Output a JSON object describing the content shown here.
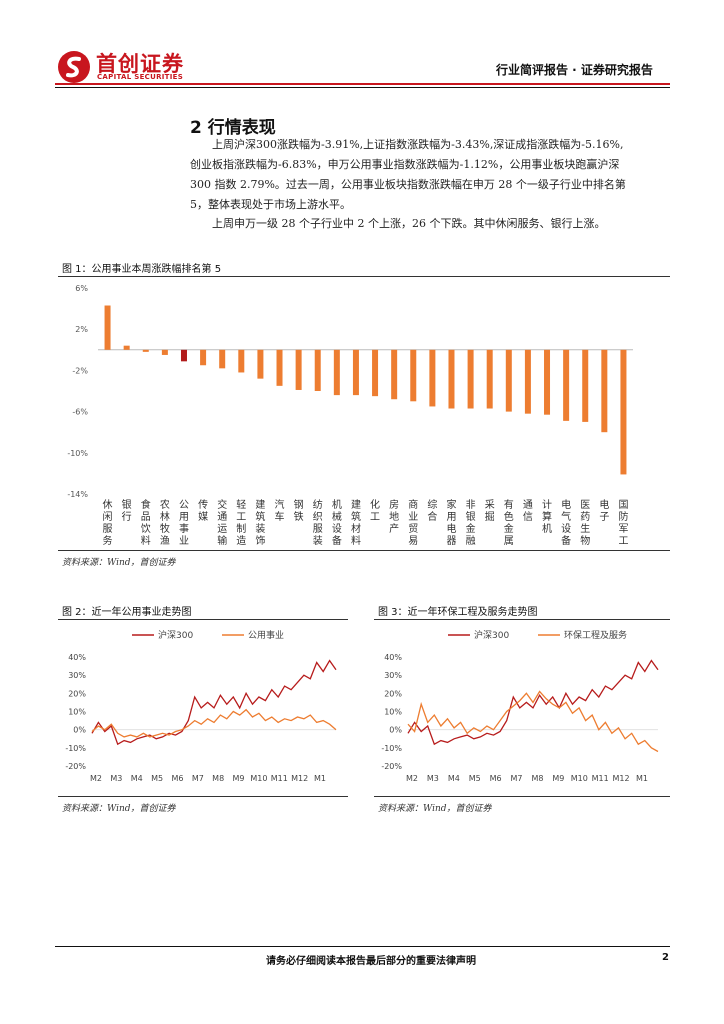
{
  "header": {
    "brand_cn": "首创证券",
    "brand_en": "CAPITAL SECURITIES",
    "report_type": "行业简评报告 · 证券研究报告",
    "accent_color": "#c8161e"
  },
  "section": {
    "title": "2 行情表现",
    "para1_lines": [
      "上周沪深300涨跌幅为-3.91%,上证指数涨跌幅为-3.43%,深证成指涨跌幅为-5.16%,",
      "创业板指涨跌幅为-6.83%，申万公用事业指数涨跌幅为-1.12%，公用事业板块跑赢沪深",
      "300 指数 2.79%。过去一周，公用事业板块指数涨跌幅在申万 28 个一级子行业中排名第",
      "5，整体表现处于市场上游水平。"
    ],
    "para2": "上周申万一级 28 个子行业中 2 个上涨，26 个下跌。其中休闲服务、银行上涨。"
  },
  "fig1": {
    "title": "图 1：公用事业本周涨跌幅排名第 5",
    "source": "资料来源：Wind，首创证券"
  },
  "fig2": {
    "title": "图 2：近一年公用事业走势图",
    "source": "资料来源：Wind，首创证券"
  },
  "fig3": {
    "title": "图 3：近一年环保工程及服务走势图",
    "source": "资料来源：Wind，首创证券"
  },
  "footer": {
    "disclaimer": "请务必仔细阅读本报告最后部分的重要法律声明",
    "page_number": "2"
  },
  "chart_data": [
    {
      "type": "bar",
      "title": "图 1：公用事业本周涨跌幅排名第 5",
      "categories": [
        "休闲服务",
        "银行",
        "食品饮料",
        "农林牧渔",
        "公用事业",
        "传媒",
        "交通运输",
        "轻工制造",
        "建筑装饰",
        "汽车",
        "钢铁",
        "纺织服装",
        "机械设备",
        "建筑材料",
        "化工",
        "房地产",
        "商业贸易",
        "综合",
        "家用电器",
        "非银金融",
        "采掘",
        "有色金属",
        "通信",
        "计算机",
        "电气设备",
        "医药生物",
        "电子",
        "国防军工"
      ],
      "values": [
        4.3,
        0.4,
        -0.2,
        -0.5,
        -1.12,
        -1.5,
        -1.8,
        -2.2,
        -2.8,
        -3.5,
        -3.9,
        -4.0,
        -4.4,
        -4.4,
        -4.5,
        -4.8,
        -5.0,
        -5.5,
        -5.7,
        -5.7,
        -5.7,
        -6.0,
        -6.2,
        -6.3,
        -6.9,
        -7.0,
        -8.0,
        -12.1
      ],
      "highlight_index": 4,
      "bar_color": "#ed7d31",
      "highlight_color": "#b11b1b",
      "ylim": [
        -14,
        6
      ],
      "yticks": [
        6,
        2,
        -2,
        -6,
        -10,
        -14
      ],
      "ytick_labels": [
        "6%",
        "2%",
        "-2%",
        "-6%",
        "-10%",
        "-14%"
      ]
    },
    {
      "type": "line",
      "title": "图 2：近一年公用事业走势图",
      "x_labels": [
        "M2",
        "M3",
        "M4",
        "M5",
        "M6",
        "M7",
        "M8",
        "M9",
        "M10",
        "M11",
        "M12",
        "M1"
      ],
      "ylim": [
        -20,
        40
      ],
      "yticks": [
        40,
        30,
        20,
        10,
        0,
        -10,
        -20
      ],
      "ytick_labels": [
        "40%",
        "30%",
        "20%",
        "10%",
        "0%",
        "-10%",
        "-20%"
      ],
      "series": [
        {
          "name": "沪深300",
          "color": "#b71c1c",
          "values": [
            -2,
            4,
            -1,
            2,
            -8,
            -6,
            -7,
            -5,
            -4,
            -3,
            -5,
            -4,
            -2,
            -3,
            -1,
            5,
            18,
            12,
            15,
            12,
            19,
            14,
            18,
            12,
            20,
            14,
            18,
            16,
            22,
            18,
            24,
            22,
            26,
            30,
            28,
            37,
            32,
            38,
            33
          ]
        },
        {
          "name": "公用事业",
          "color": "#ed7d31",
          "values": [
            -1,
            2,
            0,
            3,
            -2,
            -4,
            -3,
            -4,
            -2,
            -4,
            -3,
            -2,
            -3,
            -1,
            0,
            2,
            5,
            3,
            6,
            4,
            8,
            6,
            10,
            8,
            11,
            7,
            9,
            5,
            7,
            4,
            6,
            5,
            7,
            6,
            8,
            4,
            5,
            3,
            0
          ]
        }
      ]
    },
    {
      "type": "line",
      "title": "图 3：近一年环保工程及服务走势图",
      "x_labels": [
        "M2",
        "M3",
        "M4",
        "M5",
        "M6",
        "M7",
        "M8",
        "M9",
        "M10",
        "M11",
        "M12",
        "M1"
      ],
      "ylim": [
        -20,
        40
      ],
      "yticks": [
        40,
        30,
        20,
        10,
        0,
        -10,
        -20
      ],
      "ytick_labels": [
        "40%",
        "30%",
        "20%",
        "10%",
        "0%",
        "-10%",
        "-20%"
      ],
      "series": [
        {
          "name": "沪深300",
          "color": "#b71c1c",
          "values": [
            -2,
            4,
            -1,
            2,
            -8,
            -6,
            -7,
            -5,
            -4,
            -3,
            -5,
            -4,
            -2,
            -3,
            -1,
            5,
            18,
            12,
            15,
            12,
            19,
            14,
            18,
            12,
            20,
            14,
            18,
            16,
            22,
            18,
            24,
            22,
            26,
            30,
            28,
            37,
            32,
            38,
            33
          ]
        },
        {
          "name": "环保工程及服务",
          "color": "#ed7d31",
          "values": [
            3,
            -1,
            14,
            4,
            8,
            2,
            6,
            1,
            4,
            -2,
            1,
            -1,
            2,
            0,
            5,
            10,
            13,
            16,
            20,
            15,
            21,
            17,
            14,
            12,
            15,
            9,
            12,
            5,
            8,
            0,
            4,
            -2,
            1,
            -5,
            -2,
            -8,
            -6,
            -10,
            -12
          ]
        }
      ]
    }
  ]
}
